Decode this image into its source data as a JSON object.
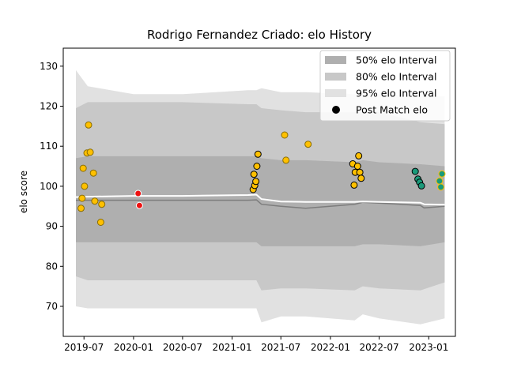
{
  "chart_data": {
    "type": "scatter",
    "title": "Rodrigo Fernandez Criado: elo History",
    "xlabel": "",
    "ylabel": "elo score",
    "xlim": [
      "2019-04-15",
      "2023-04-10"
    ],
    "ylim": [
      62.5,
      134.5
    ],
    "yticks": [
      70,
      80,
      90,
      100,
      110,
      120,
      130
    ],
    "xticks": [
      "2019-07",
      "2020-01",
      "2020-07",
      "2021-01",
      "2021-07",
      "2022-01",
      "2022-07",
      "2023-01"
    ],
    "grid": false,
    "legend_position": "top-right",
    "legend": [
      {
        "label": "50% elo Interval",
        "color": "#afafaf"
      },
      {
        "label": "80% elo Interval",
        "color": "#c8c8c8"
      },
      {
        "label": "95% elo Interval",
        "color": "#e1e1e1"
      },
      {
        "label": "Post Match elo",
        "color": "#000000"
      }
    ],
    "bands": {
      "x": [
        "2019-06-01",
        "2019-07-15",
        "2020-01-01",
        "2020-07-01",
        "2021-03-01",
        "2021-04-01",
        "2021-04-20",
        "2021-07-01",
        "2021-10-01",
        "2022-04-01",
        "2022-05-01",
        "2022-07-01",
        "2022-12-01",
        "2023-03-01"
      ],
      "ci95_upper": [
        129,
        125,
        123,
        123,
        124,
        124,
        124.5,
        123.5,
        123.5,
        123,
        123.5,
        123,
        122.5,
        122.5
      ],
      "ci95_lower": [
        70,
        69.5,
        69.5,
        69.5,
        69.5,
        69.5,
        66,
        67.5,
        67.5,
        66.5,
        68,
        67,
        65.5,
        67
      ],
      "ci80_upper": [
        119.5,
        121,
        121,
        121,
        120.5,
        120.5,
        119.5,
        119,
        118.5,
        118.5,
        119,
        118.5,
        116,
        115.5
      ],
      "ci80_lower": [
        77.5,
        76.5,
        76.5,
        76.5,
        76.5,
        76.5,
        74,
        74.5,
        74.5,
        74,
        75,
        74.5,
        74,
        76
      ],
      "ci50_upper": [
        107,
        107.5,
        107.5,
        107.5,
        107.5,
        107.5,
        107,
        106.5,
        106.5,
        106,
        106.5,
        106,
        105.5,
        105
      ],
      "ci50_lower": [
        86,
        86,
        86,
        86,
        86,
        86,
        85,
        85,
        85,
        85,
        85.5,
        85.5,
        85,
        86
      ]
    },
    "mean_line": {
      "x": [
        "2019-06-01",
        "2019-07-15",
        "2020-01-01",
        "2020-07-01",
        "2021-03-01",
        "2021-04-01",
        "2021-04-20",
        "2021-07-01",
        "2021-10-01",
        "2022-04-01",
        "2022-05-01",
        "2022-07-01",
        "2022-12-01",
        "2022-12-15",
        "2023-03-01"
      ],
      "y": [
        96.5,
        96.5,
        96.5,
        96.5,
        96.5,
        96.6,
        95.5,
        95,
        94.5,
        95.5,
        96,
        95.8,
        95.2,
        94.6,
        95
      ]
    },
    "median_line": {
      "x": [
        "2019-06-01",
        "2019-07-15",
        "2020-01-01",
        "2020-07-01",
        "2021-03-01",
        "2021-04-01",
        "2021-04-20",
        "2021-07-01",
        "2021-10-01",
        "2022-04-01",
        "2022-05-01",
        "2022-07-01",
        "2022-12-01",
        "2022-12-15",
        "2023-03-01"
      ],
      "y": [
        97.3,
        97.4,
        97.6,
        97.6,
        97.8,
        97.9,
        96.8,
        96.2,
        96.1,
        96.1,
        96.2,
        96.1,
        95.9,
        95.5,
        95.4
      ]
    },
    "series": [
      {
        "color": "#ffc000",
        "edge": "#8a6d00",
        "points": [
          {
            "x": "2019-06-20",
            "y": 94.5
          },
          {
            "x": "2019-06-24",
            "y": 97
          },
          {
            "x": "2019-06-28",
            "y": 104.5
          },
          {
            "x": "2019-07-03",
            "y": 100
          },
          {
            "x": "2019-07-12",
            "y": 108.3
          },
          {
            "x": "2019-07-18",
            "y": 115.3
          },
          {
            "x": "2019-07-24",
            "y": 108.5
          },
          {
            "x": "2019-08-05",
            "y": 103.3
          },
          {
            "x": "2019-08-10",
            "y": 96.3
          },
          {
            "x": "2019-09-01",
            "y": 91
          },
          {
            "x": "2019-09-05",
            "y": 95.5
          },
          {
            "x": "2021-07-15",
            "y": 112.8
          },
          {
            "x": "2021-07-20",
            "y": 106.5
          },
          {
            "x": "2021-10-10",
            "y": 110.5
          }
        ]
      },
      {
        "color": "#ee1111",
        "edge": "#ffffff",
        "points": [
          {
            "x": "2020-01-18",
            "y": 98.2
          },
          {
            "x": "2020-01-23",
            "y": 95.2
          }
        ]
      },
      {
        "color": "#ffc000",
        "edge": "#000000",
        "points": [
          {
            "x": "2021-03-20",
            "y": 99.2
          },
          {
            "x": "2021-03-23",
            "y": 103
          },
          {
            "x": "2021-03-26",
            "y": 100.2
          },
          {
            "x": "2021-03-30",
            "y": 101.2
          },
          {
            "x": "2021-04-03",
            "y": 105
          },
          {
            "x": "2021-04-07",
            "y": 108
          },
          {
            "x": "2022-03-25",
            "y": 105.6
          },
          {
            "x": "2022-03-30",
            "y": 100.3
          },
          {
            "x": "2022-04-03",
            "y": 103.5
          },
          {
            "x": "2022-04-12",
            "y": 105
          },
          {
            "x": "2022-04-16",
            "y": 107.6
          },
          {
            "x": "2022-04-20",
            "y": 103.5
          },
          {
            "x": "2022-04-25",
            "y": 102
          }
        ]
      },
      {
        "color": "#1a9a7a",
        "edge": "#000000",
        "points": [
          {
            "x": "2022-11-12",
            "y": 103.7
          },
          {
            "x": "2022-11-22",
            "y": 101.8
          },
          {
            "x": "2022-11-28",
            "y": 101
          },
          {
            "x": "2022-12-05",
            "y": 100.1
          }
        ]
      },
      {
        "color": "#1a9a7a",
        "edge": "#ffc000",
        "points": [
          {
            "x": "2023-02-10",
            "y": 101.3
          },
          {
            "x": "2023-02-15",
            "y": 99.8
          },
          {
            "x": "2023-02-19",
            "y": 103.1
          }
        ]
      }
    ]
  }
}
